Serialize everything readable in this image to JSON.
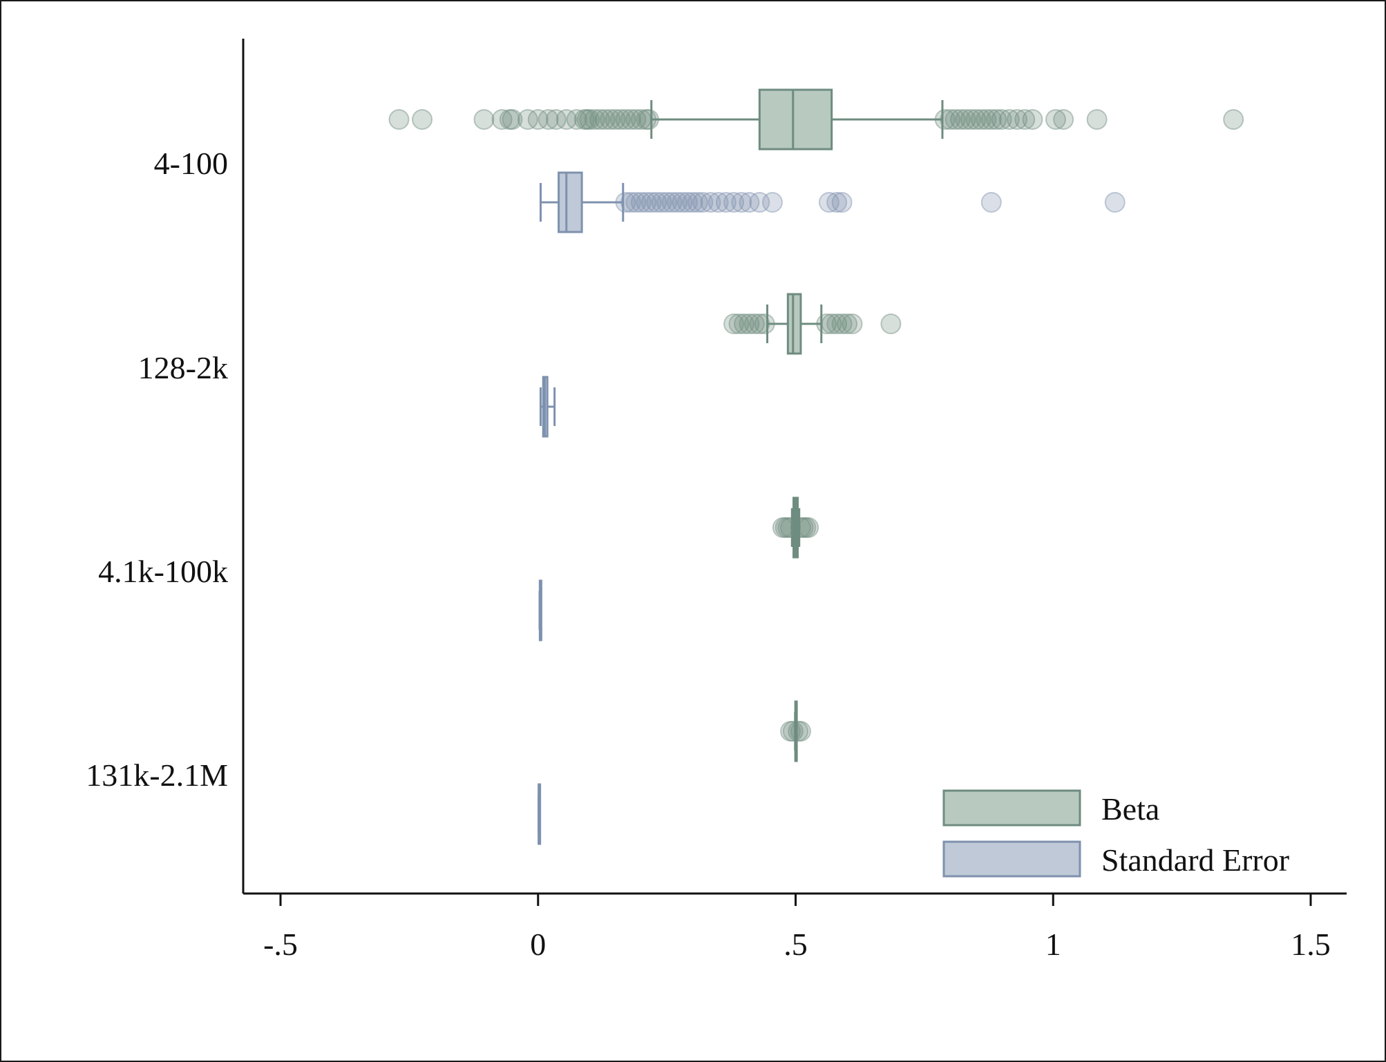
{
  "chart_data": {
    "type": "box",
    "orientation": "horizontal",
    "title": "",
    "xlabel": "",
    "ylabel": "",
    "xlim": [
      -0.57,
      1.57
    ],
    "x_ticks": [
      -0.5,
      0,
      0.5,
      1,
      1.5
    ],
    "x_tick_labels": [
      "-.5",
      "0",
      ".5",
      "1",
      "1.5"
    ],
    "categories": [
      "4-100",
      "128-2k",
      "4.1k-100k",
      "131k-2.1M"
    ],
    "legend": {
      "position": "bottom-right",
      "entries": [
        "Beta",
        "Standard Error"
      ]
    },
    "grid": false,
    "colors": {
      "beta_fill": "#b8c9c0",
      "beta_stroke": "#6e8c7f",
      "se_fill": "#bfc9d7",
      "se_stroke": "#7e91ae"
    },
    "series": [
      {
        "name": "Beta",
        "boxes": [
          {
            "category": "4-100",
            "whisker_low": 0.22,
            "q1": 0.43,
            "median": 0.495,
            "q3": 0.57,
            "whisker_high": 0.785,
            "outliers": [
              -0.27,
              -0.225,
              -0.105,
              -0.07,
              -0.055,
              -0.05,
              -0.02,
              0.0,
              0.02,
              0.035,
              0.055,
              0.075,
              0.09,
              0.095,
              0.1,
              0.11,
              0.12,
              0.13,
              0.14,
              0.15,
              0.16,
              0.17,
              0.18,
              0.19,
              0.2,
              0.21,
              0.215,
              0.79,
              0.8,
              0.81,
              0.82,
              0.83,
              0.84,
              0.85,
              0.86,
              0.87,
              0.88,
              0.89,
              0.9,
              0.915,
              0.93,
              0.945,
              0.96,
              1.005,
              1.02,
              1.085,
              1.35
            ]
          },
          {
            "category": "128-2k",
            "whisker_low": 0.445,
            "q1": 0.485,
            "median": 0.495,
            "q3": 0.51,
            "whisker_high": 0.55,
            "outliers": [
              0.38,
              0.39,
              0.4,
              0.41,
              0.42,
              0.43,
              0.44,
              0.56,
              0.57,
              0.58,
              0.59,
              0.6,
              0.61,
              0.685
            ]
          },
          {
            "category": "4.1k-100k",
            "whisker_low": 0.493,
            "q1": 0.496,
            "median": 0.5,
            "q3": 0.504,
            "whisker_high": 0.507,
            "outliers": [
              0.475,
              0.48,
              0.485,
              0.49,
              0.51,
              0.515,
              0.52,
              0.525
            ]
          },
          {
            "category": "131k-2.1M",
            "whisker_low": 0.499,
            "q1": 0.4995,
            "median": 0.5,
            "q3": 0.5005,
            "whisker_high": 0.501,
            "outliers": [
              0.49,
              0.495,
              0.505,
              0.51
            ]
          }
        ]
      },
      {
        "name": "Standard Error",
        "boxes": [
          {
            "category": "4-100",
            "whisker_low": 0.005,
            "q1": 0.04,
            "median": 0.055,
            "q3": 0.085,
            "whisker_high": 0.165,
            "outliers": [
              0.17,
              0.18,
              0.19,
              0.2,
              0.21,
              0.22,
              0.23,
              0.24,
              0.25,
              0.26,
              0.27,
              0.28,
              0.29,
              0.3,
              0.31,
              0.32,
              0.335,
              0.35,
              0.365,
              0.38,
              0.395,
              0.41,
              0.43,
              0.455,
              0.565,
              0.58,
              0.59,
              0.88,
              1.12
            ]
          },
          {
            "category": "128-2k",
            "whisker_low": 0.005,
            "q1": 0.01,
            "median": 0.013,
            "q3": 0.018,
            "whisker_high": 0.032,
            "outliers": []
          },
          {
            "category": "4.1k-100k",
            "whisker_low": 0.003,
            "q1": 0.0035,
            "median": 0.004,
            "q3": 0.0045,
            "whisker_high": 0.005,
            "outliers": []
          },
          {
            "category": "131k-2.1M",
            "whisker_low": 0.001,
            "q1": 0.0012,
            "median": 0.0015,
            "q3": 0.0018,
            "whisker_high": 0.002,
            "outliers": []
          }
        ]
      }
    ]
  }
}
